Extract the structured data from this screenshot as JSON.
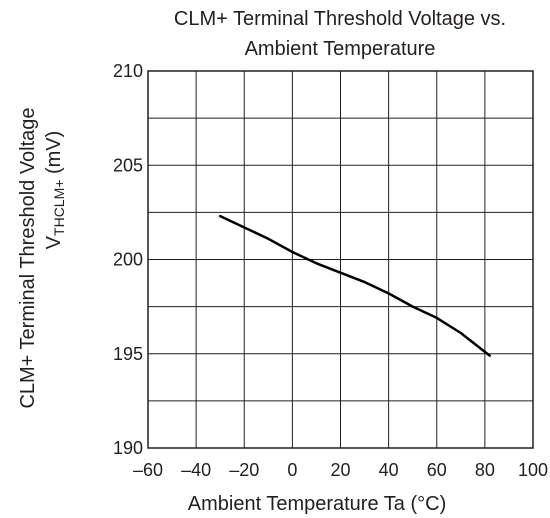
{
  "chart_data": {
    "type": "line",
    "title_lines": [
      "CLM+ Terminal Threshold Voltage vs.",
      "Ambient Temperature"
    ],
    "xlabel": "Ambient Temperature   Ta (°C)",
    "ylabel_line1": "CLM+ Terminal Threshold Voltage",
    "ylabel_line2_main": "V",
    "ylabel_line2_sub": "THCLM+",
    "ylabel_line2_unit": " (mV)",
    "xlim": [
      -60,
      100
    ],
    "ylim": [
      190,
      210
    ],
    "x_ticks": [
      -60,
      -40,
      -20,
      0,
      20,
      40,
      60,
      80,
      100
    ],
    "x_tick_labels": [
      "–60",
      "–40",
      "–20",
      "0",
      "20",
      "40",
      "60",
      "80",
      "100"
    ],
    "y_ticks": [
      190,
      195,
      200,
      205,
      210
    ],
    "y_tick_labels": [
      "190",
      "195",
      "200",
      "205",
      "210"
    ],
    "grid": true,
    "series": [
      {
        "x": [
          -30,
          -20,
          -10,
          0,
          10,
          20,
          30,
          40,
          50,
          60,
          70,
          80,
          82
        ],
        "y": [
          202.3,
          201.7,
          201.1,
          200.4,
          199.8,
          199.3,
          198.8,
          198.2,
          197.5,
          196.9,
          196.1,
          195.1,
          194.9
        ],
        "color": "#000000"
      }
    ]
  }
}
